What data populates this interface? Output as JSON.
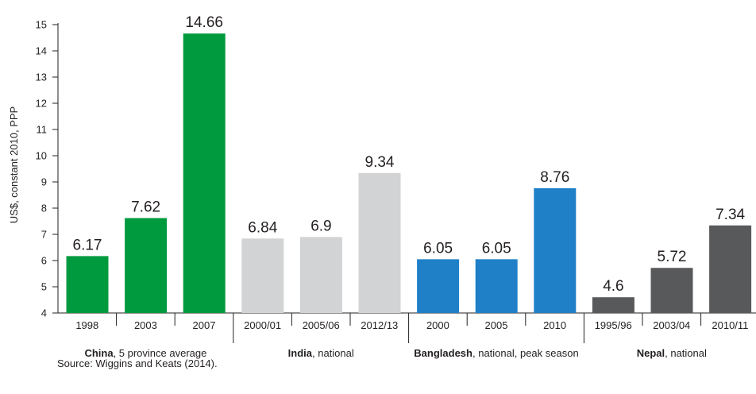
{
  "chart_data": {
    "type": "bar",
    "ylabel": "US$, constant 2010, PPP",
    "ylim": [
      4,
      15
    ],
    "yticks": [
      4,
      5,
      6,
      7,
      8,
      9,
      10,
      11,
      12,
      13,
      14,
      15
    ],
    "grid": false,
    "groups": [
      {
        "name_bold": "China",
        "name_rest": ", 5 province average",
        "color": "#009a3e",
        "categories": [
          "1998",
          "2003",
          "2007"
        ],
        "values": [
          6.17,
          7.62,
          14.66
        ]
      },
      {
        "name_bold": "India",
        "name_rest": ", national",
        "color": "#d1d3d4",
        "categories": [
          "2000/01",
          "2005/06",
          "2012/13"
        ],
        "values": [
          6.84,
          6.9,
          9.34
        ]
      },
      {
        "name_bold": "Bangladesh",
        "name_rest": ", national, peak season",
        "color": "#1f80c8",
        "categories": [
          "2000",
          "2005",
          "2010"
        ],
        "values": [
          6.05,
          6.05,
          8.76
        ]
      },
      {
        "name_bold": "Nepal",
        "name_rest": ", national",
        "color": "#58595b",
        "categories": [
          "1995/96",
          "2003/04",
          "2010/11"
        ],
        "values": [
          4.6,
          5.72,
          7.34
        ]
      }
    ]
  },
  "source": "Source: Wiggins and Keats (2014)."
}
